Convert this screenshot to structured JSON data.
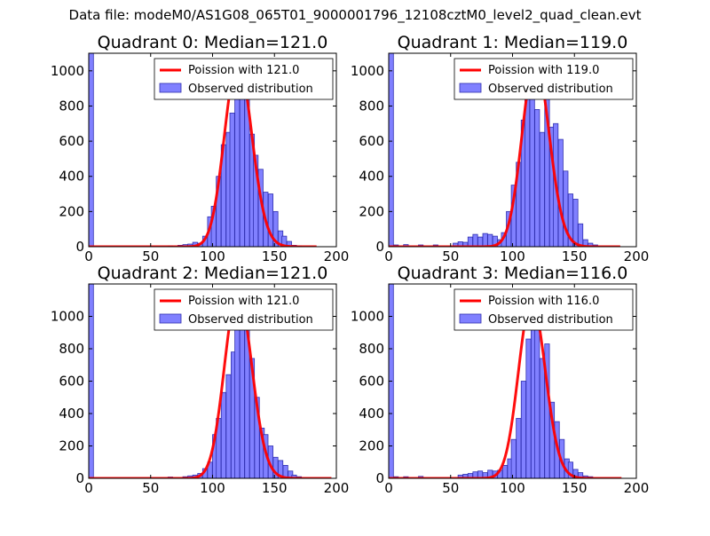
{
  "figure": {
    "suptitle": "Data file: modeM0/AS1G08_065T01_9000001796_12108cztM0_level2_quad_clean.evt"
  },
  "colors": {
    "bar_fill": "#8080ff",
    "bar_edge": "#3030b0",
    "poisson_line": "#ff0000",
    "axis": "#000000",
    "background": "#ffffff"
  },
  "chart_data": [
    {
      "type": "bar",
      "title": "Quadrant 0: Median=121.0",
      "median": 121.0,
      "xlim": [
        0,
        200
      ],
      "ylim": [
        0,
        1100
      ],
      "xticks": [
        0,
        50,
        100,
        150,
        200
      ],
      "yticks": [
        0,
        200,
        400,
        600,
        800,
        1000
      ],
      "legend": {
        "position": "top-right",
        "entries": [
          "Poission with 121.0",
          "Observed distribution"
        ]
      },
      "bin_width": 3.8,
      "bars": [
        [
          0,
          1100
        ],
        [
          64,
          5
        ],
        [
          72,
          8
        ],
        [
          76,
          12
        ],
        [
          80,
          15
        ],
        [
          84,
          25
        ],
        [
          88,
          20
        ],
        [
          92,
          60
        ],
        [
          96,
          170
        ],
        [
          99,
          230
        ],
        [
          103,
          400
        ],
        [
          107,
          580
        ],
        [
          111,
          650
        ],
        [
          114,
          760
        ],
        [
          118,
          1000
        ],
        [
          122,
          850
        ],
        [
          126,
          930
        ],
        [
          130,
          640
        ],
        [
          133,
          520
        ],
        [
          137,
          440
        ],
        [
          141,
          310
        ],
        [
          145,
          300
        ],
        [
          149,
          200
        ],
        [
          153,
          90
        ],
        [
          156,
          60
        ],
        [
          160,
          30
        ],
        [
          164,
          8
        ],
        [
          168,
          5
        ]
      ],
      "curve": {
        "mean": 121.0,
        "x_range": [
          0,
          184
        ],
        "peak": 1055
      }
    },
    {
      "type": "bar",
      "title": "Quadrant 1: Median=119.0",
      "median": 119.0,
      "xlim": [
        0,
        200
      ],
      "ylim": [
        0,
        1100
      ],
      "xticks": [
        0,
        50,
        100,
        150,
        200
      ],
      "yticks": [
        0,
        200,
        400,
        600,
        800,
        1000
      ],
      "legend": {
        "position": "top-right",
        "entries": [
          "Poission with 119.0",
          "Observed distribution"
        ]
      },
      "bin_width": 3.8,
      "bars": [
        [
          0,
          1100
        ],
        [
          4,
          10
        ],
        [
          12,
          12
        ],
        [
          24,
          10
        ],
        [
          36,
          10
        ],
        [
          52,
          20
        ],
        [
          56,
          28
        ],
        [
          60,
          25
        ],
        [
          64,
          55
        ],
        [
          68,
          70
        ],
        [
          72,
          55
        ],
        [
          76,
          75
        ],
        [
          80,
          70
        ],
        [
          84,
          60
        ],
        [
          88,
          40
        ],
        [
          91,
          80
        ],
        [
          95,
          200
        ],
        [
          99,
          350
        ],
        [
          103,
          480
        ],
        [
          107,
          720
        ],
        [
          110,
          880
        ],
        [
          114,
          910
        ],
        [
          118,
          780
        ],
        [
          122,
          650
        ],
        [
          126,
          860
        ],
        [
          130,
          680
        ],
        [
          133,
          700
        ],
        [
          137,
          610
        ],
        [
          141,
          430
        ],
        [
          145,
          300
        ],
        [
          149,
          270
        ],
        [
          153,
          130
        ],
        [
          157,
          40
        ],
        [
          161,
          20
        ],
        [
          165,
          10
        ]
      ],
      "curve": {
        "mean": 119.0,
        "x_range": [
          0,
          187
        ],
        "peak": 1060
      }
    },
    {
      "type": "bar",
      "title": "Quadrant 2: Median=121.0",
      "median": 121.0,
      "xlim": [
        0,
        200
      ],
      "ylim": [
        0,
        1200
      ],
      "xticks": [
        0,
        50,
        100,
        150,
        200
      ],
      "yticks": [
        0,
        200,
        400,
        600,
        800,
        1000
      ],
      "legend": {
        "position": "top-right",
        "entries": [
          "Poission with 121.0",
          "Observed distribution"
        ]
      },
      "bin_width": 3.8,
      "bars": [
        [
          0,
          1200
        ],
        [
          64,
          8
        ],
        [
          76,
          10
        ],
        [
          80,
          15
        ],
        [
          84,
          20
        ],
        [
          88,
          30
        ],
        [
          92,
          60
        ],
        [
          96,
          100
        ],
        [
          100,
          270
        ],
        [
          103,
          370
        ],
        [
          107,
          530
        ],
        [
          111,
          640
        ],
        [
          115,
          780
        ],
        [
          118,
          1050
        ],
        [
          122,
          970
        ],
        [
          126,
          1080
        ],
        [
          130,
          740
        ],
        [
          134,
          500
        ],
        [
          138,
          310
        ],
        [
          141,
          270
        ],
        [
          145,
          200
        ],
        [
          149,
          130
        ],
        [
          153,
          110
        ],
        [
          157,
          80
        ],
        [
          161,
          45
        ],
        [
          164,
          20
        ],
        [
          168,
          10
        ]
      ],
      "curve": {
        "mean": 121.0,
        "x_range": [
          0,
          196
        ],
        "peak": 1150
      }
    },
    {
      "type": "bar",
      "title": "Quadrant 3: Median=116.0",
      "median": 116.0,
      "xlim": [
        0,
        200
      ],
      "ylim": [
        0,
        1200
      ],
      "xticks": [
        0,
        50,
        100,
        150,
        200
      ],
      "yticks": [
        0,
        200,
        400,
        600,
        800,
        1000
      ],
      "legend": {
        "position": "top-right",
        "entries": [
          "Poission with 116.0",
          "Observed distribution"
        ]
      },
      "bin_width": 3.8,
      "bars": [
        [
          0,
          1200
        ],
        [
          4,
          10
        ],
        [
          12,
          10
        ],
        [
          24,
          12
        ],
        [
          56,
          20
        ],
        [
          60,
          25
        ],
        [
          64,
          30
        ],
        [
          68,
          40
        ],
        [
          72,
          45
        ],
        [
          76,
          35
        ],
        [
          80,
          50
        ],
        [
          84,
          45
        ],
        [
          88,
          50
        ],
        [
          92,
          80
        ],
        [
          96,
          120
        ],
        [
          99,
          240
        ],
        [
          103,
          370
        ],
        [
          107,
          600
        ],
        [
          111,
          860
        ],
        [
          115,
          930
        ],
        [
          118,
          1020
        ],
        [
          122,
          740
        ],
        [
          126,
          830
        ],
        [
          130,
          470
        ],
        [
          134,
          350
        ],
        [
          138,
          240
        ],
        [
          142,
          120
        ],
        [
          145,
          100
        ],
        [
          149,
          55
        ],
        [
          153,
          35
        ],
        [
          157,
          15
        ],
        [
          161,
          10
        ]
      ],
      "curve": {
        "mean": 116.0,
        "x_range": [
          0,
          188
        ],
        "peak": 1100
      }
    }
  ]
}
